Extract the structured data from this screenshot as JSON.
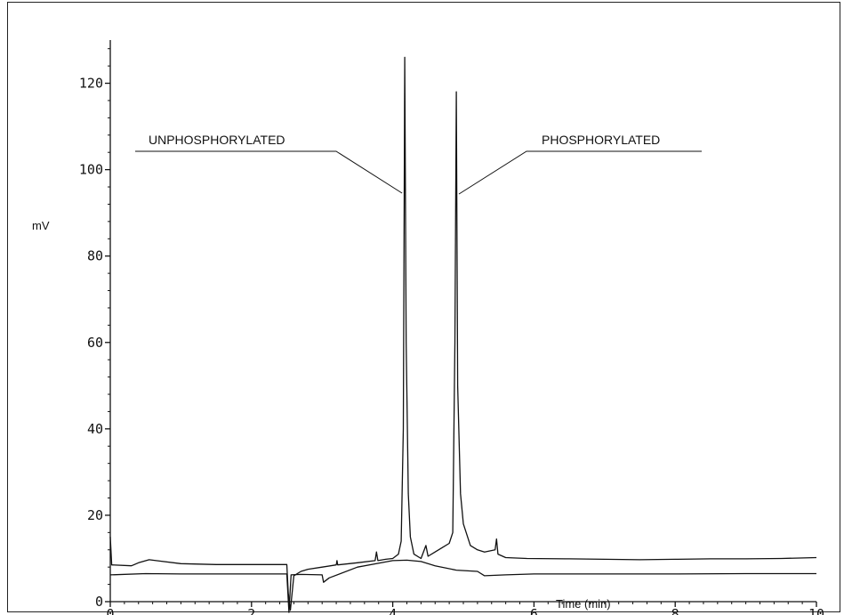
{
  "chart_data": {
    "type": "line",
    "title": "",
    "xlabel": "Time (min)",
    "ylabel": "mV",
    "xlim": [
      0,
      10
    ],
    "ylim": [
      0,
      130
    ],
    "x_ticks": [
      0,
      2,
      4,
      6,
      8,
      10
    ],
    "x_tick_labels": [
      "0",
      "2",
      "4",
      "6",
      "8",
      "10"
    ],
    "y_ticks": [
      0,
      20,
      40,
      60,
      80,
      100,
      120
    ],
    "y_tick_labels": [
      "0",
      "20",
      "40",
      "60",
      "80",
      "100",
      "120"
    ],
    "grid": false,
    "line_color": "#111111",
    "series": [
      {
        "points": [
          [
            0,
            15
          ],
          [
            0.02,
            8.5
          ],
          [
            0.3,
            8.3
          ],
          [
            0.4,
            9
          ],
          [
            0.55,
            9.7
          ],
          [
            0.7,
            9.4
          ],
          [
            1.0,
            8.8
          ],
          [
            1.5,
            8.6
          ],
          [
            2.0,
            8.6
          ],
          [
            2.5,
            8.6
          ],
          [
            2.52,
            2
          ],
          [
            2.55,
            -2
          ],
          [
            2.6,
            6
          ],
          [
            2.7,
            7
          ],
          [
            2.8,
            7.5
          ],
          [
            3.0,
            8
          ],
          [
            3.2,
            8.5
          ],
          [
            3.21,
            9.5
          ],
          [
            3.22,
            8.5
          ],
          [
            3.5,
            9
          ],
          [
            3.75,
            9.5
          ],
          [
            3.77,
            11.5
          ],
          [
            3.79,
            9.5
          ],
          [
            3.9,
            9.8
          ],
          [
            4.0,
            10
          ],
          [
            4.08,
            11
          ],
          [
            4.12,
            14
          ],
          [
            4.15,
            40
          ],
          [
            4.17,
            126
          ],
          [
            4.19,
            60
          ],
          [
            4.22,
            25
          ],
          [
            4.25,
            15
          ],
          [
            4.3,
            11
          ],
          [
            4.4,
            10
          ],
          [
            4.47,
            13
          ],
          [
            4.5,
            10.5
          ],
          [
            4.6,
            11.5
          ],
          [
            4.7,
            12.5
          ],
          [
            4.8,
            13.5
          ],
          [
            4.85,
            16
          ],
          [
            4.88,
            60
          ],
          [
            4.9,
            118
          ],
          [
            4.92,
            50
          ],
          [
            4.96,
            25
          ],
          [
            5.0,
            18
          ],
          [
            5.1,
            13
          ],
          [
            5.2,
            12
          ],
          [
            5.3,
            11.5
          ],
          [
            5.45,
            12
          ],
          [
            5.47,
            14.5
          ],
          [
            5.49,
            11
          ],
          [
            5.6,
            10.2
          ],
          [
            5.9,
            10
          ],
          [
            6.5,
            9.9
          ],
          [
            7.0,
            9.8
          ],
          [
            7.5,
            9.7
          ],
          [
            8.0,
            9.8
          ],
          [
            8.5,
            9.9
          ],
          [
            9.0,
            9.9
          ],
          [
            9.5,
            10
          ],
          [
            10.0,
            10.2
          ]
        ]
      },
      {
        "points": [
          [
            0,
            6.2
          ],
          [
            0.5,
            6.5
          ],
          [
            1.0,
            6.4
          ],
          [
            1.5,
            6.4
          ],
          [
            2.0,
            6.4
          ],
          [
            2.5,
            6.4
          ],
          [
            2.53,
            -2.5
          ],
          [
            2.56,
            6.2
          ],
          [
            2.7,
            6.3
          ],
          [
            3.0,
            6.2
          ],
          [
            3.02,
            4.5
          ],
          [
            3.1,
            5.5
          ],
          [
            3.5,
            8
          ],
          [
            4.0,
            9.5
          ],
          [
            4.2,
            9.6
          ],
          [
            4.4,
            9.3
          ],
          [
            4.6,
            8.3
          ],
          [
            4.9,
            7.3
          ],
          [
            5.2,
            7
          ],
          [
            5.3,
            6
          ],
          [
            5.6,
            6.2
          ],
          [
            6.0,
            6.4
          ],
          [
            7.0,
            6.4
          ],
          [
            8.0,
            6.4
          ],
          [
            9.0,
            6.5
          ],
          [
            10.0,
            6.5
          ]
        ]
      }
    ],
    "annotations": [
      {
        "text": "UNPHOSPHORYLATED",
        "peak_x": 4.17
      },
      {
        "text": "PHOSPHORYLATED",
        "peak_x": 4.9
      }
    ]
  }
}
